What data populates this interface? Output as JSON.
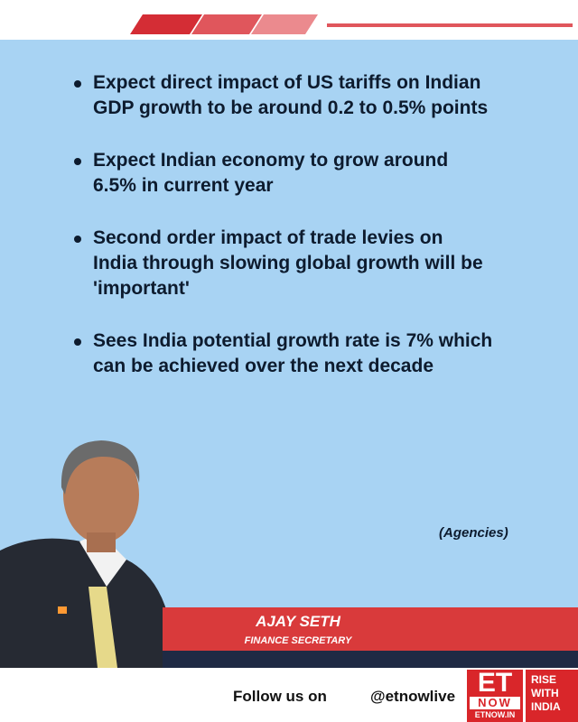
{
  "bullets": [
    [
      "Expect direct impact of US tariffs on Indian",
      "GDP growth to be around 0.2 to 0.5% points"
    ],
    [
      "Expect Indian economy to grow around",
      "6.5% in current year"
    ],
    [
      "Second order impact of trade levies on",
      "India through slowing global growth will be",
      "'important'"
    ],
    [
      "Sees India potential growth rate is 7% which",
      "can be achieved over the next decade"
    ]
  ],
  "source": "(Agencies)",
  "person": {
    "name": "AJAY SETH",
    "title": "FINANCE SECRETARY"
  },
  "footer": {
    "follow": "Follow us on",
    "handle": "@etnowlive",
    "logo": {
      "top": "ET",
      "middle": "NOW",
      "bottom": "ETNOW.IN"
    },
    "slogan": [
      "RISE",
      "WITH",
      "INDIA"
    ]
  }
}
